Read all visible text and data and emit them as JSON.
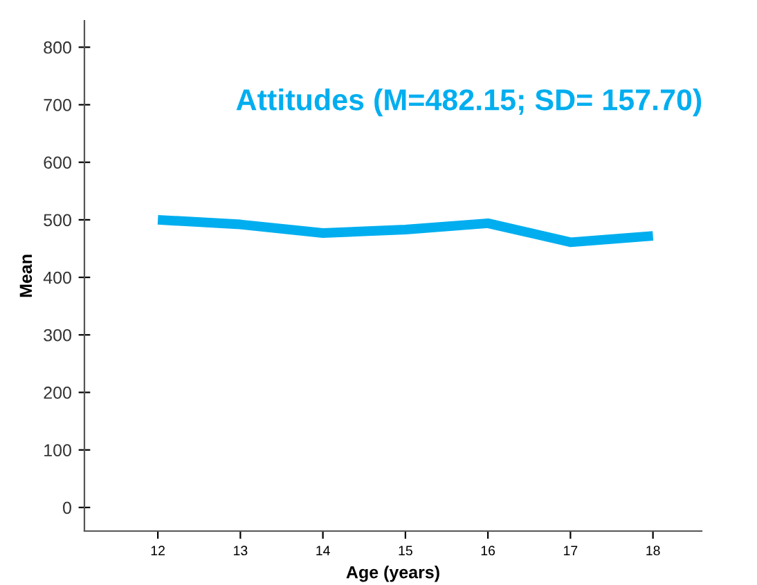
{
  "chart_data": {
    "type": "line",
    "title": "Attitudes (M=482.15; SD= 157.70)",
    "xlabel": "Age (years)",
    "ylabel": "Mean",
    "x": [
      12,
      13,
      14,
      15,
      16,
      17,
      18
    ],
    "series": [
      {
        "color": "#00aeef",
        "values": [
          500,
          492,
          477,
          483,
          494,
          461,
          472
        ]
      }
    ],
    "xlim": [
      11.11,
      18.59
    ],
    "xticks": [
      12,
      13,
      14,
      15,
      16,
      17,
      18
    ],
    "ylim": [
      -41,
      846
    ],
    "yticks": [
      0,
      100,
      200,
      300,
      400,
      500,
      600,
      700,
      800
    ],
    "grid": false,
    "legend": false,
    "marker": "none",
    "line_style": "solid"
  }
}
